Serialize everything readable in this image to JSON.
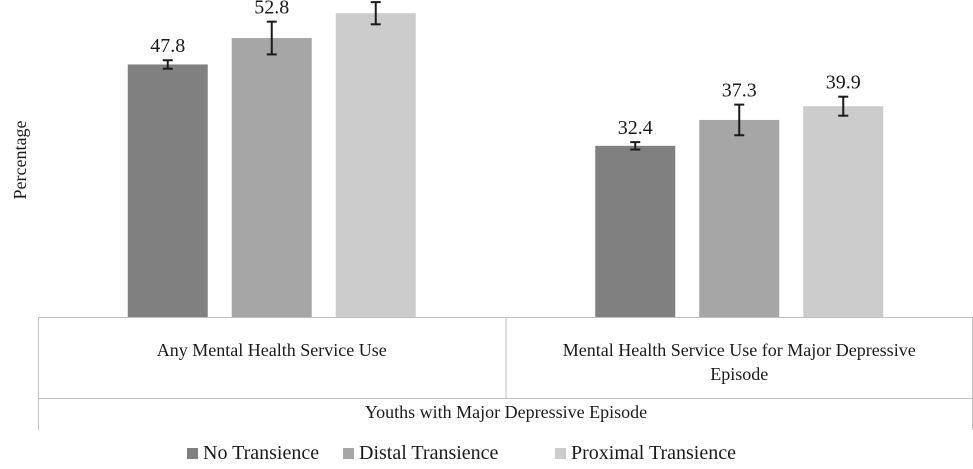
{
  "chart_data": {
    "type": "bar",
    "title": "",
    "ylabel": "Percentage",
    "xlabel": "Youths with Major Depressive Episode",
    "ylim": [
      0,
      60
    ],
    "grid": false,
    "legend_position": "bottom",
    "categories": [
      [
        "Any Mental Health Service Use"
      ],
      [
        "Mental Health Service Use for Major Depressive",
        "Episode"
      ]
    ],
    "series": [
      {
        "name": "No Transience",
        "color": "#808080",
        "values": [
          47.8,
          32.4
        ],
        "error_low": [
          47.0,
          31.7
        ],
        "error_high": [
          48.6,
          33.1
        ]
      },
      {
        "name": "Distal Transience",
        "color": "#a6a6a6",
        "values": [
          52.8,
          37.3
        ],
        "error_low": [
          49.7,
          34.4
        ],
        "error_high": [
          55.9,
          40.2
        ]
      },
      {
        "name": "Proximal Transience",
        "color": "#cccccc",
        "values": [
          57.5,
          39.9
        ],
        "error_low": [
          55.4,
          38.1
        ],
        "error_high": [
          59.6,
          41.7
        ]
      }
    ]
  }
}
